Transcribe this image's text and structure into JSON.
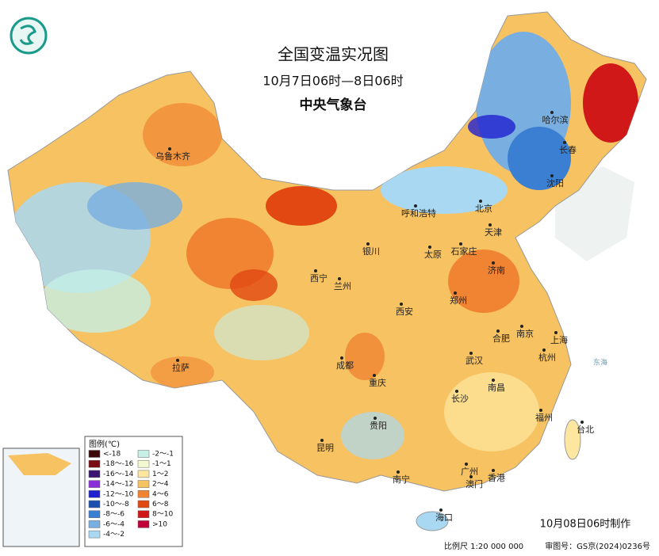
{
  "header": {
    "title": "全国变温实况图",
    "subtitle": "10月7日06时—8日06时",
    "issuer": "中央气象台"
  },
  "cities": [
    "乌鲁木齐",
    "哈尔滨",
    "长春",
    "沈阳",
    "北京",
    "天津",
    "呼和浩特",
    "银川",
    "太原",
    "石家庄",
    "济南",
    "西宁",
    "兰州",
    "郑州",
    "西安",
    "合肥",
    "南京",
    "上海",
    "拉萨",
    "成都",
    "武汉",
    "杭州",
    "重庆",
    "南昌",
    "长沙",
    "贵阳",
    "福州",
    "台北",
    "昆明",
    "广州",
    "南宁",
    "澳门",
    "香港",
    "海口"
  ],
  "seas": [
    "东海"
  ],
  "legend": {
    "title": "图例(℃)",
    "items": [
      {
        "label": "<-18",
        "color": "#3d0a0a"
      },
      {
        "label": "-18～-16",
        "color": "#7a0c14"
      },
      {
        "label": "-16～-14",
        "color": "#3a1470"
      },
      {
        "label": "-14～-12",
        "color": "#8b2fd8"
      },
      {
        "label": "-12～-10",
        "color": "#2020d0"
      },
      {
        "label": "-10～-8",
        "color": "#1d4fae"
      },
      {
        "label": "-8～-6",
        "color": "#3b7fd2"
      },
      {
        "label": "-6～-4",
        "color": "#78aee0"
      },
      {
        "label": "-4～-2",
        "color": "#a9d8f2"
      },
      {
        "label": "-2～-1",
        "color": "#c6efe6"
      },
      {
        "label": "-1～1",
        "color": "#f2f8cf"
      },
      {
        "label": "1～2",
        "color": "#fde7a0"
      },
      {
        "label": "2～4",
        "color": "#f7c262"
      },
      {
        "label": "4～6",
        "color": "#f08432"
      },
      {
        "label": "6～8",
        "color": "#e14812"
      },
      {
        "label": "8～10",
        "color": "#d01818"
      },
      {
        "label": ">10",
        "color": "#c00036"
      }
    ]
  },
  "footer": {
    "made": "10月08日06时制作",
    "scale": "比例尺 1:20 000 000",
    "approval": "审图号：GS京(2024)0236号"
  }
}
